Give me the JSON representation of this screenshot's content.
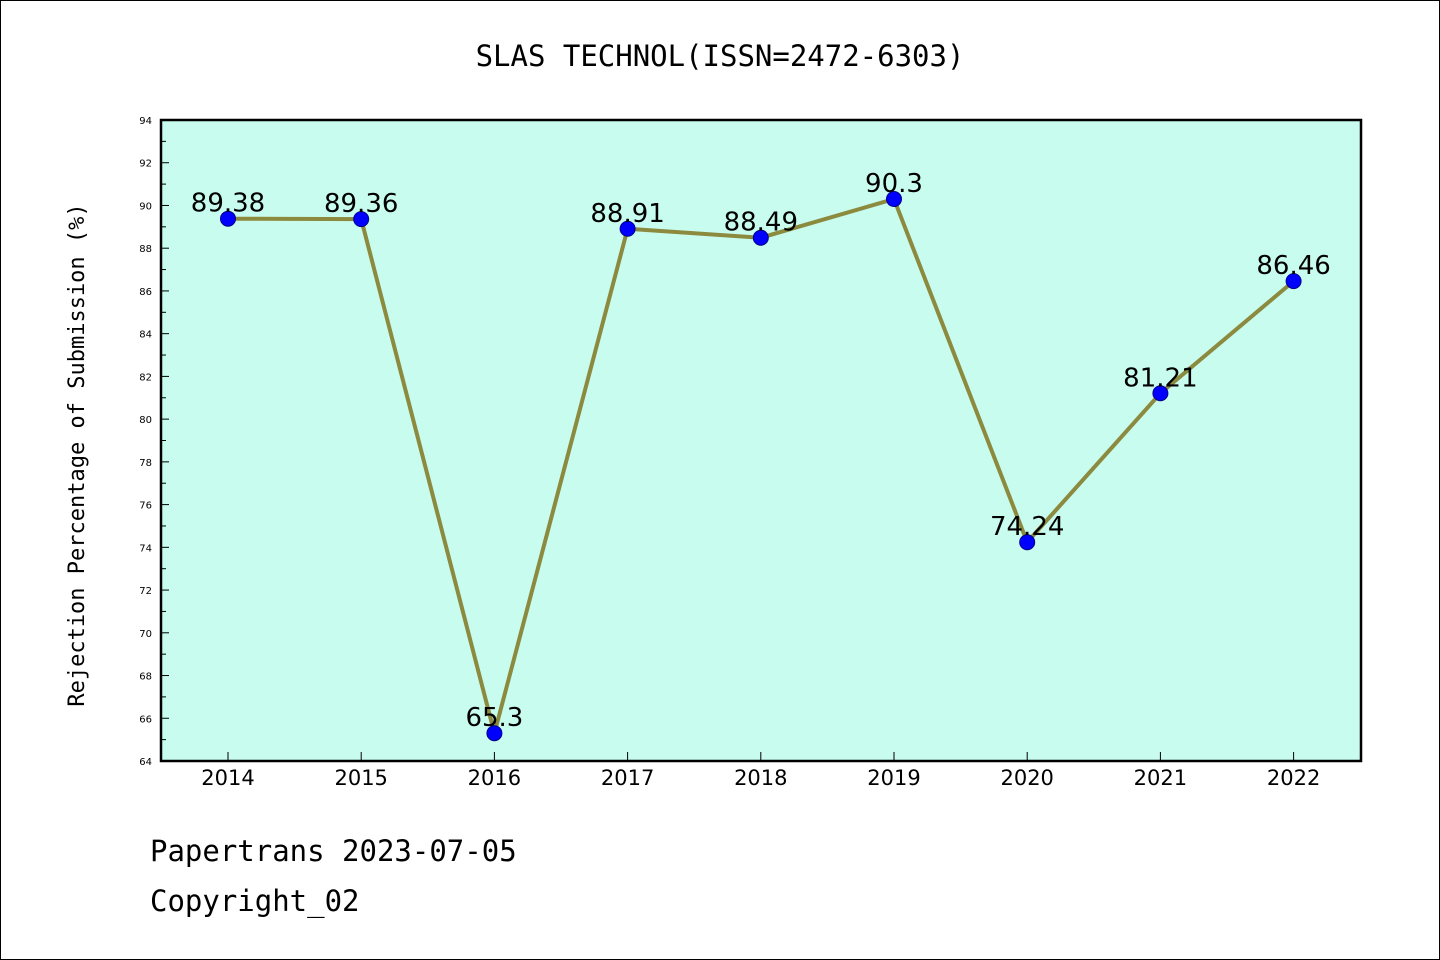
{
  "chart_data": {
    "type": "line",
    "title": "SLAS TECHNOL(ISSN=2472-6303)",
    "xlabel": "",
    "ylabel": "Rejection Percentage of Submission (%)",
    "categories": [
      "2014",
      "2015",
      "2016",
      "2017",
      "2018",
      "2019",
      "2020",
      "2021",
      "2022"
    ],
    "series": [
      {
        "values": [
          89.38,
          89.36,
          65.3,
          88.91,
          88.49,
          90.3,
          74.24,
          81.21,
          86.46
        ],
        "labels": [
          "89.38",
          "89.36",
          "65.3",
          "88.91",
          "88.49",
          "90.3",
          "74.24",
          "81.21",
          "86.46"
        ]
      }
    ],
    "ylim": [
      64,
      94
    ],
    "yticks": [
      "64",
      "66",
      "68",
      "70",
      "72",
      "74",
      "76",
      "78",
      "80",
      "82",
      "84",
      "86",
      "88",
      "90",
      "92",
      "94"
    ],
    "grid": false,
    "legend": "none",
    "colors": {
      "plot_background": "#c8fcee",
      "line": "#8b8a3e",
      "marker": "#0000ff",
      "axis": "#000000"
    }
  },
  "footer": {
    "line1": "Papertrans 2023-07-05",
    "line2": "Copyright_02"
  }
}
